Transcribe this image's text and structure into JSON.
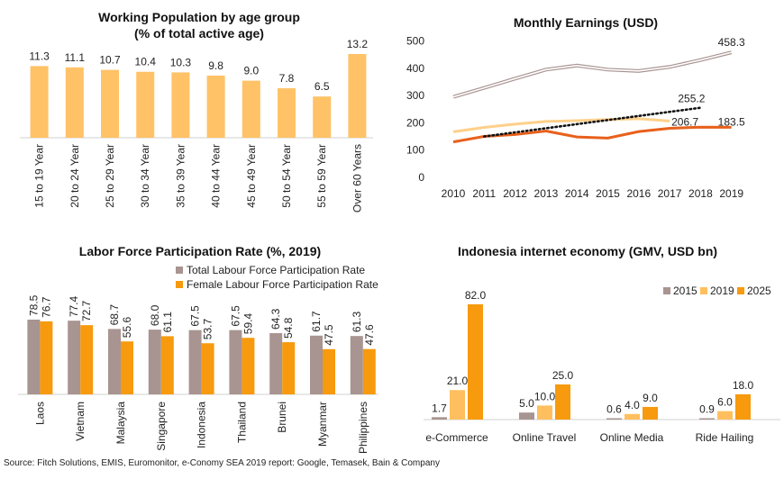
{
  "colors": {
    "light_orange": "#FFC266",
    "mid_orange": "#FFBF5F",
    "orange": "#F79A0E",
    "dark_orange": "#E8601C",
    "taupe": "#A89491",
    "pale_orange": "#FFD08A",
    "pale_taupe": "#D9C3C3",
    "dots": "#111111"
  },
  "source": "Source: Fitch Solutions, EMIS, Euromonitor, e-Conomy SEA 2019 report: Google, Temasek, Bain & Company",
  "chart_data": [
    {
      "type": "bar",
      "title": [
        "Working Population by age group",
        "(% of total active age)"
      ],
      "categories": [
        "15 to 19 Year",
        "20 to 24 Year",
        "25 to 29 Year",
        "30 to 34 Year",
        "35 to 39 Year",
        "40 to 44 Year",
        "45 to 49 Year",
        "50 to 54 Year",
        "55 to 59 Year",
        "Over 60 Years"
      ],
      "values": [
        11.3,
        11.1,
        10.7,
        10.4,
        10.3,
        9.8,
        9.0,
        7.8,
        6.5,
        13.2
      ],
      "labels": [
        "11.3",
        "11.1",
        "10.7",
        "10.4",
        "10.3",
        "9.8",
        "9.0",
        "7.8",
        "6.5",
        "13.2"
      ],
      "ylim": [
        0,
        14
      ]
    },
    {
      "type": "line",
      "title": "Monthly Earnings (USD)",
      "x": [
        2010,
        2011,
        2012,
        2013,
        2014,
        2015,
        2016,
        2017,
        2018,
        2019
      ],
      "x_ticks": [
        "2010",
        "2011",
        "2012",
        "2013",
        "2014",
        "2015",
        "2016",
        "2017",
        "2018",
        "2019"
      ],
      "y_ticks": [
        "0",
        "100",
        "200",
        "300",
        "400",
        "500"
      ],
      "ylim": [
        0,
        500
      ],
      "series": [
        {
          "style": "double-line",
          "values": [
            295,
            328,
            362,
            395,
            410,
            395,
            390,
            405,
            430,
            458.3
          ],
          "end_label": "458.3"
        },
        {
          "style": "pale-line",
          "values": [
            167,
            183,
            195,
            205,
            208,
            212,
            215,
            206.7,
            null,
            null
          ],
          "end_label": "206.7"
        },
        {
          "style": "dark-line",
          "values": [
            130,
            150,
            157,
            170,
            148,
            144,
            168,
            180,
            184,
            183.5
          ],
          "end_label": "183.5"
        },
        {
          "style": "dotted",
          "values": [
            null,
            150,
            null,
            null,
            null,
            null,
            null,
            null,
            255.2,
            null
          ],
          "end_label": "255.2"
        }
      ]
    },
    {
      "type": "bar",
      "title": "Labor Force Participation Rate (%, 2019)",
      "categories": [
        "Laos",
        "Vietnam",
        "Malaysia",
        "Singapore",
        "Indonesia",
        "Thailand",
        "Brunei",
        "Myanmar",
        "Philippines"
      ],
      "series": [
        {
          "name": "Total Labour Force Participation Rate",
          "values": [
            78.5,
            77.4,
            68.7,
            68.0,
            67.5,
            67.5,
            64.3,
            61.7,
            61.3
          ],
          "labels": [
            "78.5",
            "77.4",
            "68.7",
            "68.0",
            "67.5",
            "67.5",
            "64.3",
            "61.7",
            "61.3"
          ]
        },
        {
          "name": "Female Labour Force Participation Rate",
          "values": [
            76.7,
            72.7,
            55.6,
            61.1,
            53.7,
            59.4,
            54.8,
            47.5,
            47.6
          ],
          "labels": [
            "76.7",
            "72.7",
            "55.6",
            "61.1",
            "53.7",
            "59.4",
            "54.8",
            "47.5",
            "47.6"
          ]
        }
      ],
      "ylim": [
        0,
        90
      ]
    },
    {
      "type": "bar",
      "title": "Indonesia internet economy (GMV, USD bn)",
      "categories": [
        "e-Commerce",
        "Online Travel",
        "Online Media",
        "Ride Hailing"
      ],
      "series": [
        {
          "name": "2015",
          "values": [
            1.7,
            5.0,
            0.6,
            0.9
          ],
          "labels": [
            "1.7",
            "5.0",
            "0.6",
            "0.9"
          ]
        },
        {
          "name": "2019",
          "values": [
            21.0,
            10.0,
            4.0,
            6.0
          ],
          "labels": [
            "21.0",
            "10.0",
            "4.0",
            "6.0"
          ]
        },
        {
          "name": "2025",
          "values": [
            82.0,
            25.0,
            9.0,
            18.0
          ],
          "labels": [
            "82.0",
            "25.0",
            "9.0",
            "18.0"
          ]
        }
      ],
      "ylim": [
        0,
        85
      ]
    }
  ]
}
